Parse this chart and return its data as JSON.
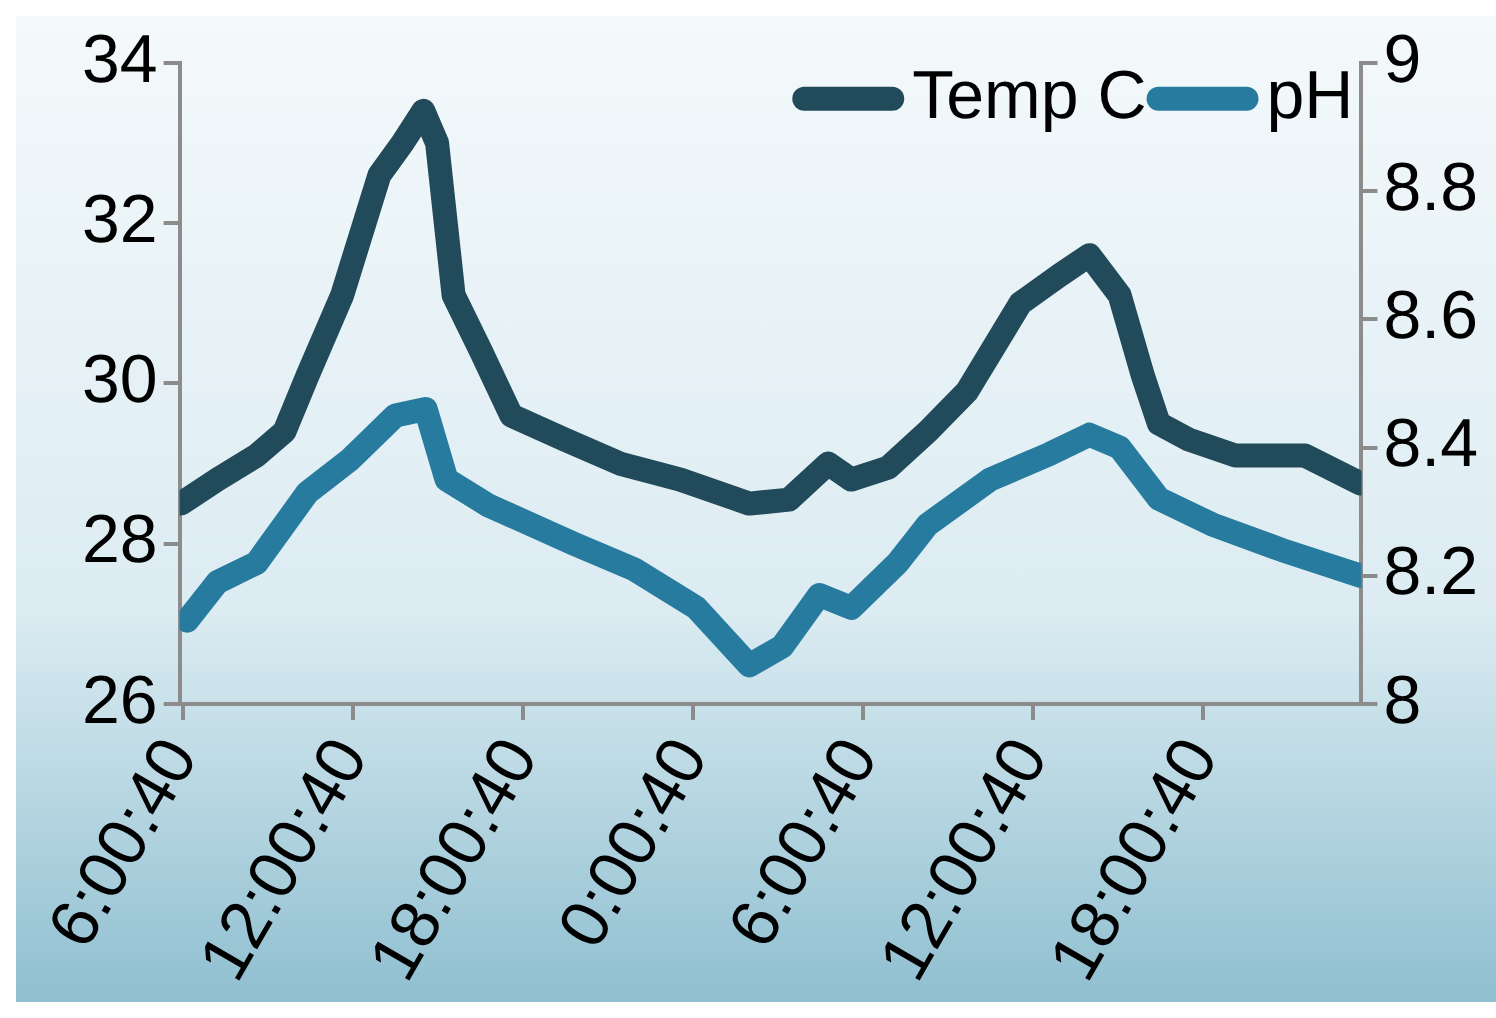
{
  "chart_data": {
    "type": "line",
    "x": [
      "--01-01T05:57",
      "--01-01T07:14",
      "--01-01T08:37",
      "--01-01T09:36",
      "--01-01T10:25",
      "--01-01T11:38",
      "--01-01T12:57",
      "--01-01T13:46",
      "--01-01T14:30",
      "--01-01T14:59",
      "--01-01T15:34",
      "--01-01T16:32",
      "--01-01T17:36",
      "--01-01T19:29",
      "--01-01T21:26",
      "--01-01T23:34",
      "--01-02T02:00",
      "--01-02T03:24",
      "--01-02T04:47",
      "--01-02T05:36",
      "--01-02T06:54",
      "--01-02T08:18",
      "--01-02T09:41",
      "--01-02T11:34",
      "--01-02T12:57",
      "--01-02T14:00",
      "--01-02T15:04",
      "--01-02T15:53",
      "--01-02T16:27",
      "--01-02T17:30",
      "--01-02T19:09",
      "--01-02T21:36",
      "--01-02T23:34"
    ],
    "series": [
      {
        "name": "Temp C",
        "color": "#214a5a",
        "values": [
          28.5,
          28.8,
          29.1,
          29.4,
          30.1,
          31.1,
          32.6,
          33.0,
          33.4,
          33.0,
          31.1,
          30.4,
          29.6,
          29.3,
          29.0,
          28.8,
          28.5,
          28.55,
          29.0,
          28.8,
          28.95,
          29.4,
          29.9,
          31.0,
          31.35,
          31.6,
          31.1,
          30.1,
          29.5,
          29.3,
          29.1,
          29.1,
          28.75
        ]
      },
      {
        "name": "pH",
        "color": "#277b9f",
        "axis": "y2",
        "x": [
          "--01-01T06:10",
          "--01-01T07:14",
          "--01-01T08:37",
          "--01-01T10:25",
          "--01-01T11:53",
          "--01-01T13:31",
          "--01-01T14:35",
          "--01-01T15:19",
          "--01-01T16:47",
          "--01-01T19:48",
          "--01-01T21:56",
          "--01-02T00:08",
          "--01-02T02:00",
          "--01-02T03:10",
          "--01-02T04:28",
          "--01-02T05:36",
          "--01-02T07:14",
          "--01-02T08:18",
          "--01-02T10:30",
          "--01-02T12:36",
          "--01-02T14:00",
          "--01-02T15:04",
          "--01-02T16:27",
          "--01-02T18:20",
          "--01-02T20:48",
          "--01-02T23:34"
        ],
        "values": [
          8.13,
          8.19,
          8.22,
          8.33,
          8.38,
          8.45,
          8.46,
          8.35,
          8.31,
          8.25,
          8.21,
          8.15,
          8.06,
          8.09,
          8.17,
          8.15,
          8.22,
          8.28,
          8.35,
          8.39,
          8.42,
          8.4,
          8.32,
          8.28,
          8.24,
          8.2
        ]
      }
    ],
    "xlim": [
      "--01-01T05:54",
      "--01-02T23:36"
    ],
    "xticks": [
      {
        "value": "--01-01T06:00:40",
        "label": "6:00:40"
      },
      {
        "value": "--01-01T12:00:40",
        "label": "12:00:40"
      },
      {
        "value": "--01-01T18:00:40",
        "label": "18:00:40"
      },
      {
        "value": "--01-02T00:00:40",
        "label": "0:00:40"
      },
      {
        "value": "--01-02T06:00:40",
        "label": "6:00:40"
      },
      {
        "value": "--01-02T12:00:40",
        "label": "12:00:40"
      },
      {
        "value": "--01-02T18:00:40",
        "label": "18:00:40"
      }
    ],
    "ylim": [
      26,
      34
    ],
    "yticks": [
      26,
      28,
      30,
      32,
      34
    ],
    "y2lim": [
      8,
      9
    ],
    "y2ticks": [
      8,
      8.2,
      8.4,
      8.6,
      8.8,
      9
    ],
    "legend": "top right",
    "grid": false,
    "marker": "none",
    "line_style": "solid"
  }
}
